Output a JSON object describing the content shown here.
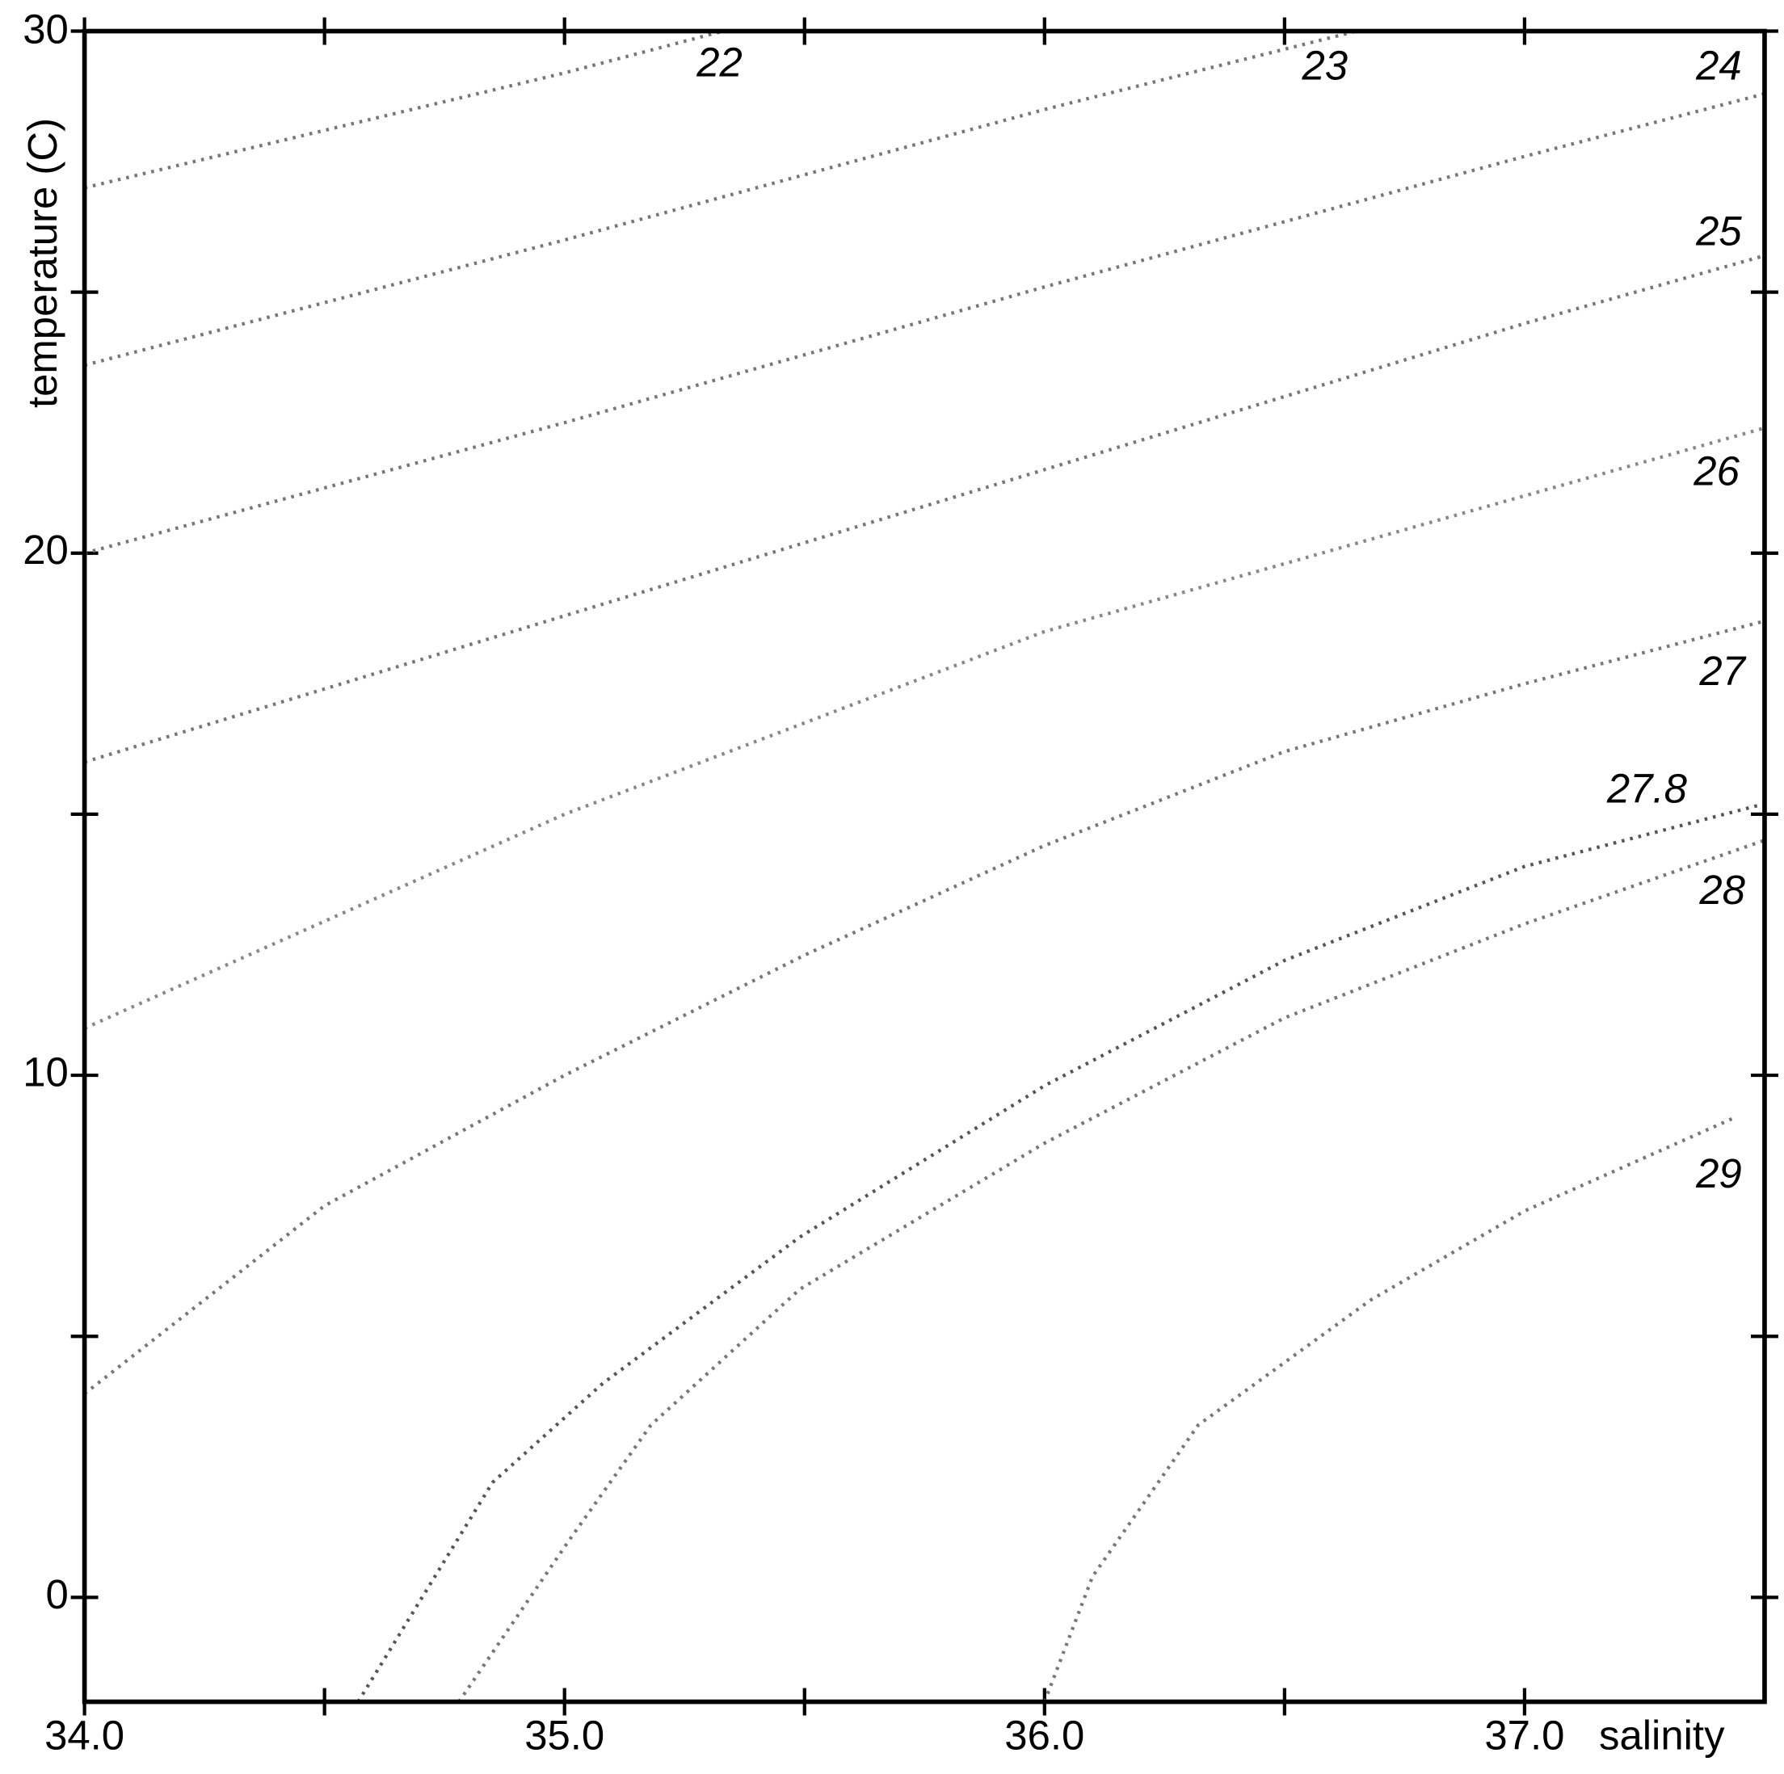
{
  "chart_data": {
    "type": "line",
    "x_label": "salinity",
    "y_label": "temperature (C)",
    "xlim": [
      34.0,
      37.5
    ],
    "ylim": [
      -2,
      30
    ],
    "xticks": [
      {
        "value": 34,
        "label": "34.0"
      },
      {
        "value": 35,
        "label": "35.0"
      },
      {
        "value": 36,
        "label": "36.0"
      },
      {
        "value": 37,
        "label": "37.0"
      }
    ],
    "xminorticks": [
      34.5,
      35.5,
      36.5
    ],
    "yticks": [
      0,
      10,
      20,
      30
    ],
    "yminorticks": [
      5,
      15,
      25
    ],
    "grid": false,
    "linestyle": "dotted",
    "series": [
      {
        "name": "22",
        "color": "#777777",
        "x": [
          34.0,
          34.5,
          35.0,
          35.33
        ],
        "values": [
          27.0,
          28.1,
          29.2,
          30.0
        ]
      },
      {
        "name": "23",
        "color": "#777777",
        "x": [
          34.0,
          35.0,
          36.0,
          36.65
        ],
        "values": [
          23.6,
          26.0,
          28.5,
          30.0
        ]
      },
      {
        "name": "24",
        "color": "#777777",
        "x": [
          34.0,
          35.0,
          36.0,
          37.0,
          37.5
        ],
        "values": [
          20.0,
          22.5,
          25.1,
          27.6,
          28.8
        ]
      },
      {
        "name": "25",
        "color": "#777777",
        "x": [
          34.0,
          35.0,
          36.0,
          37.0,
          37.5
        ],
        "values": [
          16.0,
          18.8,
          21.6,
          24.4,
          25.7
        ]
      },
      {
        "name": "26",
        "color": "#888888",
        "x": [
          34.0,
          35.0,
          36.0,
          37.0,
          37.5
        ],
        "values": [
          10.9,
          15.0,
          18.5,
          21.1,
          22.4
        ]
      },
      {
        "name": "27",
        "color": "#777777",
        "x": [
          34.0,
          34.5,
          35.0,
          35.5,
          36.0,
          36.5,
          37.0,
          37.5
        ],
        "values": [
          3.9,
          7.5,
          10.0,
          12.3,
          14.4,
          16.2,
          17.5,
          18.7
        ]
      },
      {
        "name": "27.8",
        "color": "#555555",
        "x": [
          34.57,
          34.85,
          35.08,
          35.49,
          36.0,
          36.5,
          37.0,
          37.5
        ],
        "values": [
          -2.0,
          2.2,
          4.1,
          6.9,
          9.8,
          12.2,
          14.0,
          15.2
        ]
      },
      {
        "name": "28",
        "color": "#777777",
        "x": [
          34.78,
          35.01,
          35.18,
          35.49,
          36.0,
          36.5,
          37.0,
          37.5
        ],
        "values": [
          -2.0,
          1.1,
          3.3,
          5.9,
          8.7,
          11.1,
          12.9,
          14.5
        ]
      },
      {
        "name": "29",
        "color": "#777777",
        "x": [
          36.0,
          36.1,
          36.32,
          36.68,
          37.0,
          37.44
        ],
        "values": [
          -2.0,
          0.4,
          3.3,
          5.7,
          7.4,
          9.2
        ]
      }
    ]
  }
}
